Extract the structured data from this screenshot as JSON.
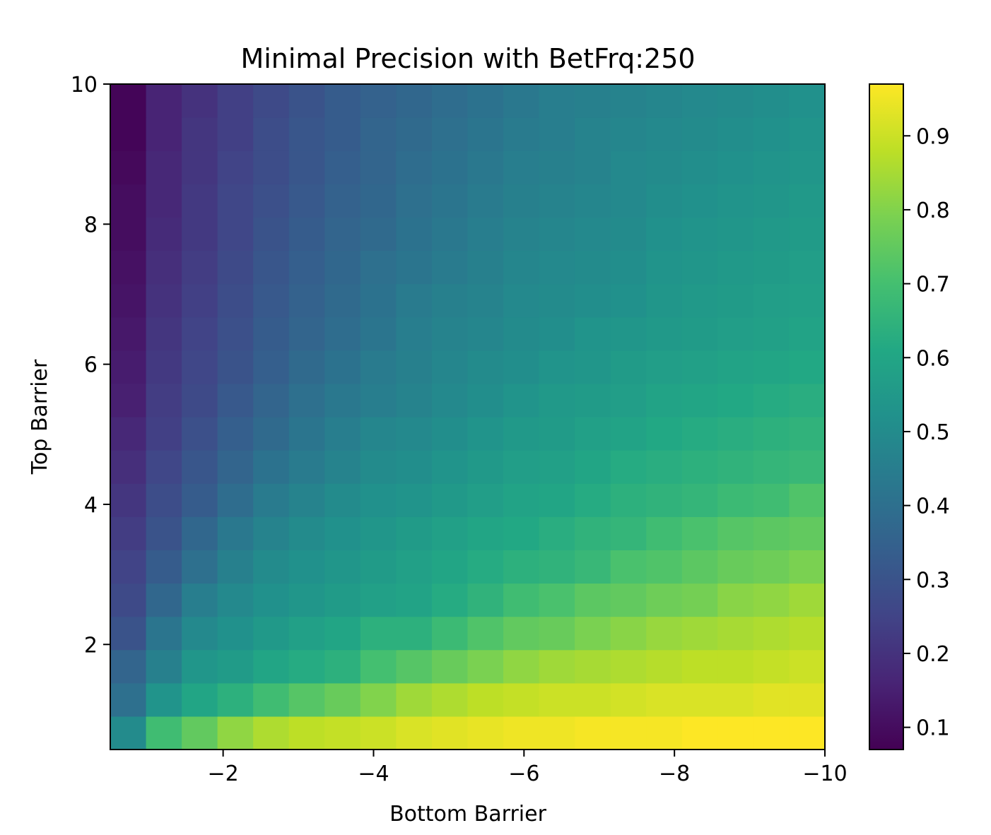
{
  "chart_data": {
    "type": "heatmap",
    "title": "Minimal Precision with BetFrq:250",
    "xlabel": "Bottom Barrier",
    "ylabel": "Top Barrier",
    "xlim": [
      -0.5,
      -10
    ],
    "ylim": [
      0.5,
      10
    ],
    "x_ticks": [
      -2,
      -4,
      -6,
      -8,
      -10
    ],
    "x_tick_labels": [
      "−2",
      "−4",
      "−6",
      "−8",
      "−10"
    ],
    "y_ticks": [
      2,
      4,
      6,
      8,
      10
    ],
    "y_tick_labels": [
      "2",
      "4",
      "6",
      "8",
      "10"
    ],
    "colormap": "viridis",
    "color_range": [
      0.07,
      0.97
    ],
    "colorbar_ticks": [
      0.1,
      0.2,
      0.3,
      0.4,
      0.5,
      0.6,
      0.7,
      0.8,
      0.9
    ],
    "colorbar_tick_labels": [
      "0.1",
      "0.2",
      "0.3",
      "0.4",
      "0.5",
      "0.6",
      "0.7",
      "0.8",
      "0.9"
    ],
    "x": [
      -0.5,
      -1.0,
      -1.5,
      -2.0,
      -2.5,
      -3.0,
      -3.5,
      -4.0,
      -4.5,
      -5.0,
      -5.5,
      -6.0,
      -6.5,
      -7.0,
      -7.5,
      -8.0,
      -8.5,
      -9.0,
      -9.5,
      -10.0
    ],
    "y": [
      0.5,
      1.0,
      1.5,
      2.0,
      2.5,
      3.0,
      3.5,
      4.0,
      4.5,
      5.0,
      5.5,
      6.0,
      6.5,
      7.0,
      7.5,
      8.0,
      8.5,
      9.0,
      9.5,
      10.0
    ],
    "z": [
      [
        0.5,
        0.69,
        0.75,
        0.82,
        0.86,
        0.88,
        0.89,
        0.9,
        0.92,
        0.93,
        0.94,
        0.95,
        0.95,
        0.96,
        0.96,
        0.96,
        0.97,
        0.97,
        0.97,
        0.97
      ],
      [
        0.4,
        0.53,
        0.6,
        0.64,
        0.69,
        0.73,
        0.76,
        0.8,
        0.84,
        0.86,
        0.88,
        0.89,
        0.9,
        0.9,
        0.91,
        0.92,
        0.92,
        0.92,
        0.93,
        0.93
      ],
      [
        0.36,
        0.46,
        0.54,
        0.56,
        0.6,
        0.62,
        0.64,
        0.7,
        0.73,
        0.76,
        0.79,
        0.82,
        0.84,
        0.85,
        0.86,
        0.87,
        0.88,
        0.88,
        0.89,
        0.9
      ],
      [
        0.3,
        0.42,
        0.49,
        0.52,
        0.55,
        0.58,
        0.6,
        0.64,
        0.64,
        0.68,
        0.72,
        0.75,
        0.76,
        0.79,
        0.81,
        0.83,
        0.84,
        0.85,
        0.86,
        0.87
      ],
      [
        0.27,
        0.37,
        0.45,
        0.49,
        0.52,
        0.54,
        0.56,
        0.58,
        0.59,
        0.62,
        0.65,
        0.69,
        0.71,
        0.74,
        0.75,
        0.77,
        0.78,
        0.81,
        0.82,
        0.84
      ],
      [
        0.25,
        0.33,
        0.4,
        0.46,
        0.5,
        0.52,
        0.54,
        0.56,
        0.58,
        0.6,
        0.62,
        0.64,
        0.65,
        0.67,
        0.71,
        0.72,
        0.74,
        0.76,
        0.77,
        0.79
      ],
      [
        0.23,
        0.3,
        0.37,
        0.43,
        0.47,
        0.5,
        0.52,
        0.54,
        0.56,
        0.58,
        0.6,
        0.61,
        0.63,
        0.65,
        0.66,
        0.69,
        0.71,
        0.73,
        0.74,
        0.75
      ],
      [
        0.21,
        0.28,
        0.33,
        0.39,
        0.44,
        0.47,
        0.5,
        0.52,
        0.53,
        0.55,
        0.57,
        0.59,
        0.6,
        0.62,
        0.64,
        0.65,
        0.66,
        0.68,
        0.69,
        0.72
      ],
      [
        0.19,
        0.26,
        0.31,
        0.36,
        0.41,
        0.44,
        0.47,
        0.5,
        0.51,
        0.53,
        0.55,
        0.57,
        0.58,
        0.6,
        0.62,
        0.63,
        0.64,
        0.65,
        0.66,
        0.67
      ],
      [
        0.17,
        0.24,
        0.29,
        0.34,
        0.38,
        0.42,
        0.45,
        0.48,
        0.49,
        0.51,
        0.53,
        0.55,
        0.56,
        0.58,
        0.59,
        0.61,
        0.62,
        0.63,
        0.64,
        0.65
      ],
      [
        0.15,
        0.23,
        0.27,
        0.32,
        0.36,
        0.4,
        0.43,
        0.45,
        0.47,
        0.49,
        0.51,
        0.53,
        0.55,
        0.56,
        0.57,
        0.59,
        0.6,
        0.61,
        0.62,
        0.63
      ],
      [
        0.14,
        0.22,
        0.26,
        0.3,
        0.34,
        0.38,
        0.41,
        0.44,
        0.46,
        0.48,
        0.5,
        0.51,
        0.53,
        0.54,
        0.56,
        0.57,
        0.58,
        0.59,
        0.6,
        0.61
      ],
      [
        0.13,
        0.21,
        0.25,
        0.29,
        0.33,
        0.36,
        0.39,
        0.42,
        0.45,
        0.47,
        0.48,
        0.5,
        0.51,
        0.53,
        0.54,
        0.55,
        0.56,
        0.57,
        0.58,
        0.59
      ],
      [
        0.12,
        0.2,
        0.24,
        0.28,
        0.32,
        0.35,
        0.38,
        0.41,
        0.44,
        0.46,
        0.47,
        0.49,
        0.5,
        0.51,
        0.52,
        0.54,
        0.55,
        0.56,
        0.57,
        0.58
      ],
      [
        0.11,
        0.19,
        0.23,
        0.27,
        0.31,
        0.34,
        0.37,
        0.4,
        0.42,
        0.44,
        0.46,
        0.48,
        0.49,
        0.5,
        0.51,
        0.53,
        0.54,
        0.55,
        0.56,
        0.57
      ],
      [
        0.1,
        0.18,
        0.22,
        0.26,
        0.3,
        0.33,
        0.36,
        0.38,
        0.41,
        0.43,
        0.45,
        0.47,
        0.48,
        0.49,
        0.5,
        0.52,
        0.53,
        0.54,
        0.55,
        0.56
      ],
      [
        0.1,
        0.17,
        0.22,
        0.26,
        0.29,
        0.32,
        0.35,
        0.37,
        0.4,
        0.42,
        0.44,
        0.46,
        0.47,
        0.48,
        0.49,
        0.51,
        0.52,
        0.53,
        0.54,
        0.55
      ],
      [
        0.09,
        0.17,
        0.21,
        0.25,
        0.28,
        0.31,
        0.34,
        0.36,
        0.39,
        0.41,
        0.43,
        0.45,
        0.46,
        0.47,
        0.49,
        0.5,
        0.51,
        0.52,
        0.53,
        0.54
      ],
      [
        0.08,
        0.16,
        0.21,
        0.24,
        0.28,
        0.31,
        0.33,
        0.36,
        0.38,
        0.4,
        0.42,
        0.44,
        0.45,
        0.47,
        0.48,
        0.49,
        0.5,
        0.51,
        0.52,
        0.53
      ],
      [
        0.08,
        0.16,
        0.2,
        0.24,
        0.27,
        0.3,
        0.33,
        0.35,
        0.37,
        0.39,
        0.41,
        0.43,
        0.45,
        0.46,
        0.47,
        0.48,
        0.49,
        0.5,
        0.51,
        0.52
      ]
    ]
  }
}
